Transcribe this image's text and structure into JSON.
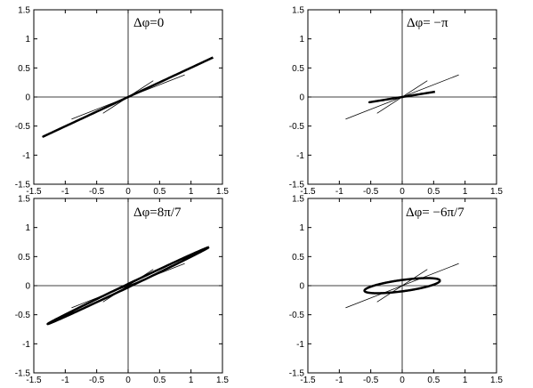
{
  "chart_data": [
    {
      "type": "line",
      "title": "Δφ=0",
      "xlim": [
        -1.5,
        1.5
      ],
      "ylim": [
        -1.5,
        1.5
      ],
      "xticks": [
        "-1.5",
        "-1",
        "-0.5",
        "0",
        "0.5",
        "1",
        "1.5"
      ],
      "yticks": [
        "-1.5",
        "-1",
        "-0.5",
        "0",
        "0.5",
        "1",
        "1.5"
      ],
      "grid": false,
      "axes_lines_through_origin": true,
      "guide_segments": [
        {
          "x1": -0.9,
          "y1": -0.38,
          "x2": 0.9,
          "y2": 0.38
        },
        {
          "x1": -0.4,
          "y1": -0.28,
          "x2": 0.4,
          "y2": 0.28
        }
      ],
      "series": [
        {
          "curve": "ellipse",
          "phase_diff": 0,
          "a": 1.35,
          "b": 0.68,
          "lw": 2.5
        }
      ]
    },
    {
      "type": "line",
      "title": "Δφ= −π",
      "xlim": [
        -1.5,
        1.5
      ],
      "ylim": [
        -1.5,
        1.5
      ],
      "xticks": [
        "-1.5",
        "-1",
        "-0.5",
        "0",
        "0.5",
        "1",
        "1.5"
      ],
      "yticks": [
        "-1.5",
        "-1",
        "-0.5",
        "0",
        "0.5",
        "1",
        "1.5"
      ],
      "grid": false,
      "axes_lines_through_origin": true,
      "guide_segments": [
        {
          "x1": -0.9,
          "y1": -0.38,
          "x2": 0.9,
          "y2": 0.38
        },
        {
          "x1": -0.4,
          "y1": -0.28,
          "x2": 0.4,
          "y2": 0.28
        }
      ],
      "series": [
        {
          "curve": "ellipse",
          "phase_diff": 0,
          "a": 0.52,
          "b": 0.09,
          "lw": 2.5
        }
      ]
    },
    {
      "type": "line",
      "title": "Δφ=8π/7",
      "xlim": [
        -1.5,
        1.5
      ],
      "ylim": [
        -1.5,
        1.5
      ],
      "xticks": [
        "-1.5",
        "-1",
        "-0.5",
        "0",
        "0.5",
        "1",
        "1.5"
      ],
      "yticks": [
        "-1.5",
        "-1",
        "-0.5",
        "0",
        "0.5",
        "1",
        "1.5"
      ],
      "grid": false,
      "axes_lines_through_origin": true,
      "guide_segments": [
        {
          "x1": -0.9,
          "y1": -0.38,
          "x2": 0.9,
          "y2": 0.38
        },
        {
          "x1": -0.4,
          "y1": -0.28,
          "x2": 0.4,
          "y2": 0.28
        }
      ],
      "series": [
        {
          "curve": "ellipse",
          "phase_diff": 0.045,
          "a": 1.28,
          "b": 0.66,
          "lw": 2.5
        }
      ]
    },
    {
      "type": "line",
      "title": "Δφ= −6π/7",
      "xlim": [
        -1.5,
        1.5
      ],
      "ylim": [
        -1.5,
        1.5
      ],
      "xticks": [
        "-1.5",
        "-1",
        "-0.5",
        "0",
        "0.5",
        "1",
        "1.5"
      ],
      "yticks": [
        "-1.5",
        "-1",
        "-0.5",
        "0",
        "0.5",
        "1",
        "1.5"
      ],
      "grid": false,
      "axes_lines_through_origin": true,
      "guide_segments": [
        {
          "x1": -0.9,
          "y1": -0.38,
          "x2": 0.9,
          "y2": 0.38
        },
        {
          "x1": -0.4,
          "y1": -0.28,
          "x2": 0.4,
          "y2": 0.28
        }
      ],
      "series": [
        {
          "curve": "ellipse",
          "phase_diff": 0.85,
          "a": 0.6,
          "b": 0.13,
          "lw": 2.5
        }
      ]
    }
  ]
}
